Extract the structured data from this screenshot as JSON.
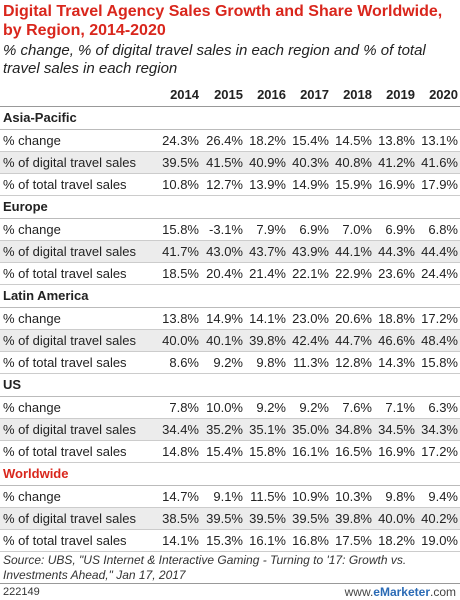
{
  "chart_data": {
    "type": "table",
    "title": "Digital Travel Agency Sales Growth and Share Worldwide, by Region, 2014-2020",
    "subtitle": "% change, % of digital travel sales in each region and % of total travel sales in each region",
    "columns": [
      "2014",
      "2015",
      "2016",
      "2017",
      "2018",
      "2019",
      "2020"
    ],
    "sections": [
      {
        "name": "Asia-Pacific",
        "rows": [
          {
            "label": "% change",
            "values": [
              "24.3%",
              "26.4%",
              "18.2%",
              "15.4%",
              "14.5%",
              "13.8%",
              "13.1%"
            ]
          },
          {
            "label": "% of digital travel sales",
            "values": [
              "39.5%",
              "41.5%",
              "40.9%",
              "40.3%",
              "40.8%",
              "41.2%",
              "41.6%"
            ]
          },
          {
            "label": "% of total travel sales",
            "values": [
              "10.8%",
              "12.7%",
              "13.9%",
              "14.9%",
              "15.9%",
              "16.9%",
              "17.9%"
            ]
          }
        ]
      },
      {
        "name": "Europe",
        "rows": [
          {
            "label": "% change",
            "values": [
              "15.8%",
              "-3.1%",
              "7.9%",
              "6.9%",
              "7.0%",
              "6.9%",
              "6.8%"
            ]
          },
          {
            "label": "% of digital travel sales",
            "values": [
              "41.7%",
              "43.0%",
              "43.7%",
              "43.9%",
              "44.1%",
              "44.3%",
              "44.4%"
            ]
          },
          {
            "label": "% of total travel sales",
            "values": [
              "18.5%",
              "20.4%",
              "21.4%",
              "22.1%",
              "22.9%",
              "23.6%",
              "24.4%"
            ]
          }
        ]
      },
      {
        "name": "Latin America",
        "rows": [
          {
            "label": "% change",
            "values": [
              "13.8%",
              "14.9%",
              "14.1%",
              "23.0%",
              "20.6%",
              "18.8%",
              "17.2%"
            ]
          },
          {
            "label": "% of digital travel sales",
            "values": [
              "40.0%",
              "40.1%",
              "39.8%",
              "42.4%",
              "44.7%",
              "46.6%",
              "48.4%"
            ]
          },
          {
            "label": "% of total travel sales",
            "values": [
              "8.6%",
              "9.2%",
              "9.8%",
              "11.3%",
              "12.8%",
              "14.3%",
              "15.8%"
            ]
          }
        ]
      },
      {
        "name": "US",
        "rows": [
          {
            "label": "% change",
            "values": [
              "7.8%",
              "10.0%",
              "9.2%",
              "9.2%",
              "7.6%",
              "7.1%",
              "6.3%"
            ]
          },
          {
            "label": "% of digital travel sales",
            "values": [
              "34.4%",
              "35.2%",
              "35.1%",
              "35.0%",
              "34.8%",
              "34.5%",
              "34.3%"
            ]
          },
          {
            "label": "% of total travel sales",
            "values": [
              "14.8%",
              "15.4%",
              "15.8%",
              "16.1%",
              "16.5%",
              "16.9%",
              "17.2%"
            ]
          }
        ]
      },
      {
        "name": "Worldwide",
        "highlight": true,
        "rows": [
          {
            "label": "% change",
            "values": [
              "14.7%",
              "9.1%",
              "11.5%",
              "10.9%",
              "10.3%",
              "9.8%",
              "9.4%"
            ]
          },
          {
            "label": "% of digital travel sales",
            "values": [
              "38.5%",
              "39.5%",
              "39.5%",
              "39.5%",
              "39.8%",
              "40.0%",
              "40.2%"
            ]
          },
          {
            "label": "% of total travel sales",
            "values": [
              "14.1%",
              "15.3%",
              "16.1%",
              "16.8%",
              "17.5%",
              "18.2%",
              "19.0%"
            ]
          }
        ]
      }
    ],
    "source": "Source: UBS, \"US Internet & Interactive Gaming - Turning to '17: Growth vs. Investments Ahead,\" Jan 17, 2017",
    "chart_id": "222149",
    "brand_prefix": "www.",
    "brand_name": "eMarketer",
    "brand_suffix": ".com",
    "colors": {
      "accent": "#d9261c",
      "row_alt": "#ececec",
      "brand": "#2a6ab5"
    }
  }
}
